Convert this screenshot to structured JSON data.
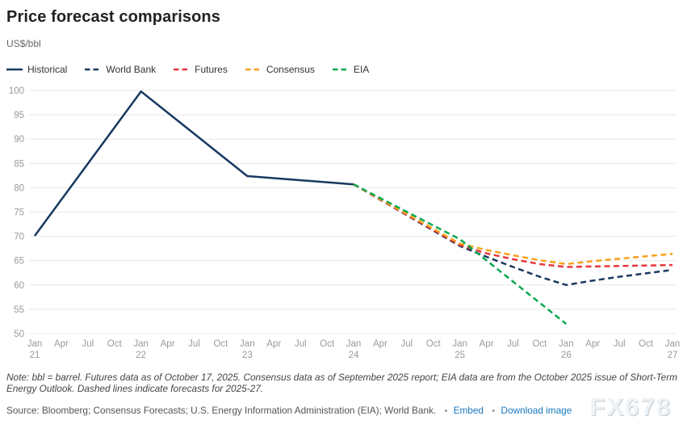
{
  "header": {
    "title": "Price forecast comparisons",
    "subtitle": "US$/bbl"
  },
  "legend": {
    "items": [
      {
        "label": "Historical"
      },
      {
        "label": "World Bank"
      },
      {
        "label": "Futures"
      },
      {
        "label": "Consensus"
      },
      {
        "label": "EIA"
      }
    ]
  },
  "chart_data": {
    "type": "line",
    "title": "Price forecast comparisons",
    "ylabel": "US$/bbl",
    "ylim": [
      50,
      100
    ],
    "ytick_step": 5,
    "grid": "horizontal-only",
    "grid_color": "#e8e8e8",
    "axis_label_color": "#9a9a9a",
    "legend_position": "top-left",
    "x_unit": "quarters from Jan 2021 to Jan 2027",
    "x_ticks": [
      {
        "m": "Jan",
        "y": "21"
      },
      {
        "m": "Apr"
      },
      {
        "m": "Jul"
      },
      {
        "m": "Oct"
      },
      {
        "m": "Jan",
        "y": "22"
      },
      {
        "m": "Apr"
      },
      {
        "m": "Jul"
      },
      {
        "m": "Oct"
      },
      {
        "m": "Jan",
        "y": "23"
      },
      {
        "m": "Apr"
      },
      {
        "m": "Jul"
      },
      {
        "m": "Oct"
      },
      {
        "m": "Jan",
        "y": "24"
      },
      {
        "m": "Apr"
      },
      {
        "m": "Jul"
      },
      {
        "m": "Oct"
      },
      {
        "m": "Jan",
        "y": "25"
      },
      {
        "m": "Apr"
      },
      {
        "m": "Jul"
      },
      {
        "m": "Oct"
      },
      {
        "m": "Jan",
        "y": "26"
      },
      {
        "m": "Apr"
      },
      {
        "m": "Jul"
      },
      {
        "m": "Oct"
      },
      {
        "m": "Jan",
        "y": "27"
      }
    ],
    "series": [
      {
        "name": "Historical",
        "color": "#17395f",
        "dashed": false,
        "points": [
          [
            0,
            70.1
          ],
          [
            4,
            99.8
          ],
          [
            8,
            82.4
          ],
          [
            12,
            80.7
          ]
        ]
      },
      {
        "name": "World Bank",
        "color": "#1b3a5e",
        "dashed": true,
        "points": [
          [
            12,
            80.7
          ],
          [
            16,
            68.0
          ],
          [
            17,
            65.8
          ],
          [
            18,
            63.7
          ],
          [
            19,
            61.7
          ],
          [
            20,
            60.0
          ],
          [
            21,
            60.9
          ],
          [
            22,
            61.7
          ],
          [
            23,
            62.4
          ],
          [
            24,
            63.1
          ]
        ]
      },
      {
        "name": "Futures",
        "color": "#e8363d",
        "dashed": true,
        "points": [
          [
            12,
            80.7
          ],
          [
            16,
            68.2
          ],
          [
            17,
            66.5
          ],
          [
            18,
            65.3
          ],
          [
            19,
            64.3
          ],
          [
            20,
            63.7
          ],
          [
            21,
            63.8
          ],
          [
            22,
            63.9
          ],
          [
            23,
            64.0
          ],
          [
            24,
            64.1
          ]
        ]
      },
      {
        "name": "Consensus",
        "color": "#f7a11c",
        "dashed": true,
        "points": [
          [
            12,
            80.7
          ],
          [
            16,
            68.5
          ],
          [
            17,
            67.2
          ],
          [
            18,
            66.1
          ],
          [
            19,
            65.1
          ],
          [
            20,
            64.3
          ],
          [
            21,
            64.9
          ],
          [
            22,
            65.4
          ],
          [
            23,
            65.9
          ],
          [
            24,
            66.4
          ]
        ]
      },
      {
        "name": "EIA",
        "color": "#0aa84f",
        "dashed": true,
        "points": [
          [
            12,
            80.7
          ],
          [
            16,
            69.4
          ],
          [
            20,
            52.0
          ]
        ]
      }
    ]
  },
  "footer": {
    "note": "Note: bbl = barrel. Futures data as of October 17, 2025. Consensus data as of September 2025 report; EIA data are from the October 2025 issue of Short-Term Energy Outlook. Dashed lines indicate forecasts for 2025-27.",
    "source": "Source: Bloomberg; Consensus Forecasts; U.S. Energy Information Administration (EIA); World Bank.",
    "bullet": "•",
    "links": [
      {
        "label": "Embed"
      },
      {
        "label": "Download image"
      }
    ],
    "link_color": "#1878be",
    "watermark": "FX678"
  }
}
